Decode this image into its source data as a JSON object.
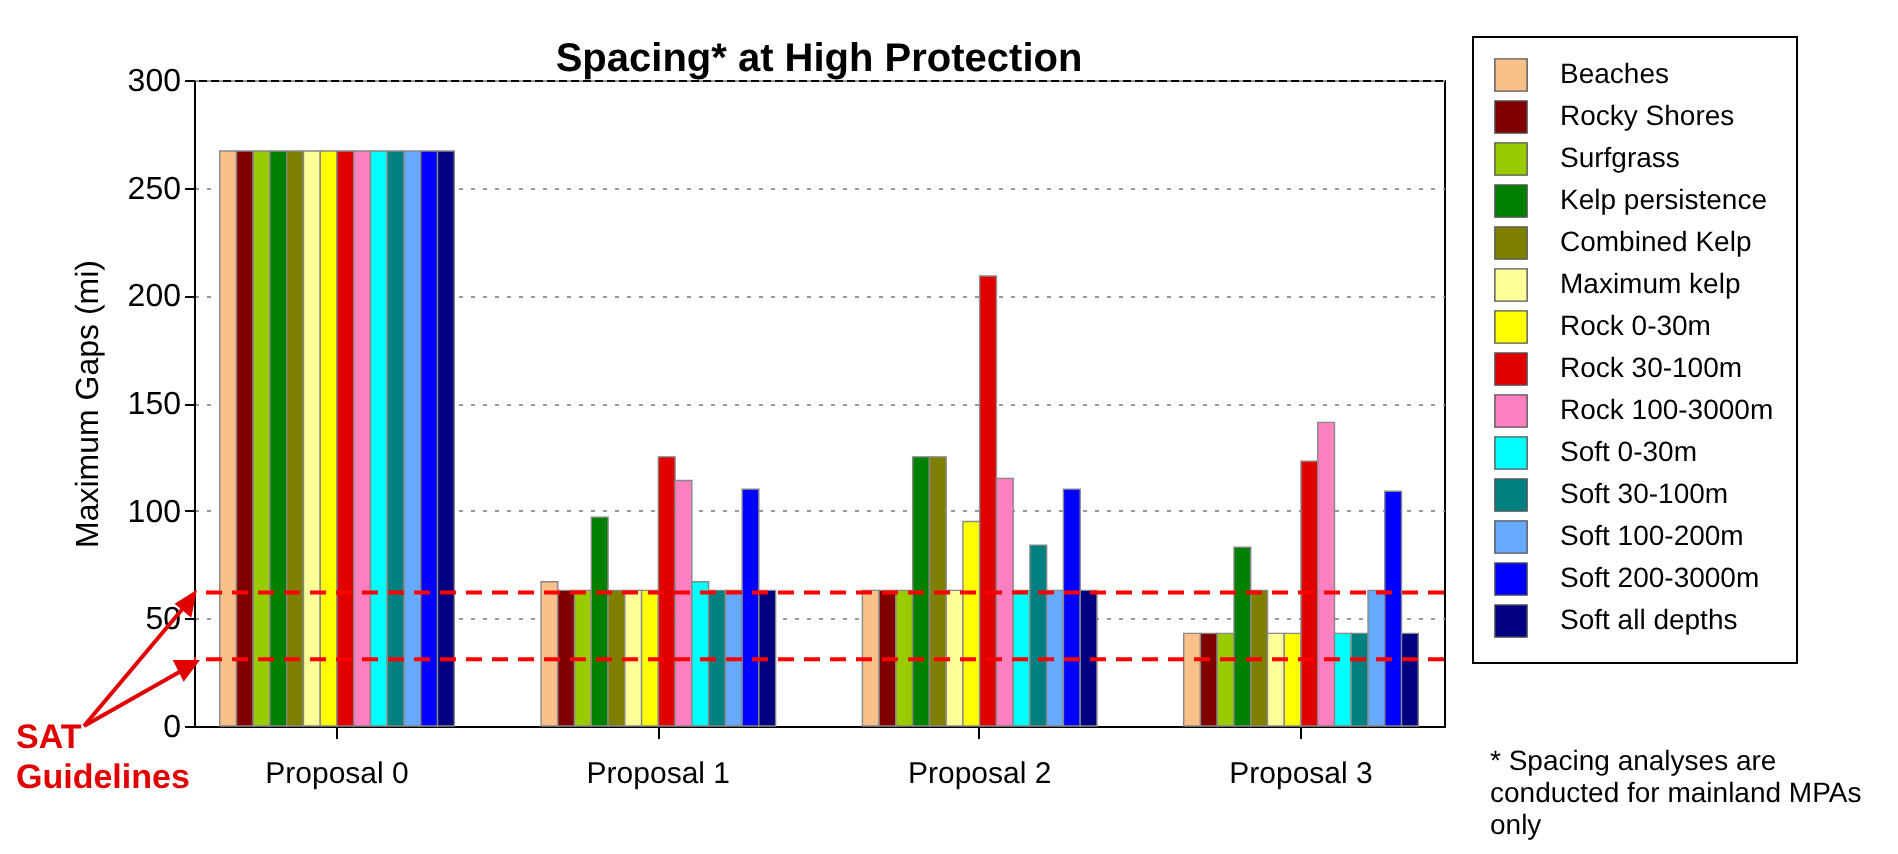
{
  "chart_data": {
    "type": "bar",
    "title": "Spacing* at High Protection",
    "ylabel": "Maximum Gaps (mi)",
    "categories": [
      "Proposal 0",
      "Proposal 1",
      "Proposal 2",
      "Proposal 3"
    ],
    "series": [
      {
        "name": "Beaches",
        "color": "#f9c08a",
        "values": [
          267,
          67,
          63,
          43
        ]
      },
      {
        "name": "Rocky Shores",
        "color": "#800000",
        "values": [
          267,
          63,
          63,
          43
        ]
      },
      {
        "name": "Surfgrass",
        "color": "#99cc00",
        "values": [
          267,
          63,
          63,
          43
        ]
      },
      {
        "name": "Kelp persistence",
        "color": "#008000",
        "values": [
          267,
          97,
          125,
          83
        ]
      },
      {
        "name": "Combined Kelp",
        "color": "#808000",
        "values": [
          267,
          63,
          125,
          63
        ]
      },
      {
        "name": "Maximum kelp",
        "color": "#ffff99",
        "values": [
          267,
          63,
          63,
          43
        ]
      },
      {
        "name": "Rock 0-30m",
        "color": "#ffff00",
        "values": [
          267,
          63,
          95,
          43
        ]
      },
      {
        "name": "Rock 30-100m",
        "color": "#e00000",
        "values": [
          267,
          125,
          209,
          123
        ]
      },
      {
        "name": "Rock 100-3000m",
        "color": "#ff80c0",
        "values": [
          267,
          114,
          115,
          141
        ]
      },
      {
        "name": "Soft 0-30m",
        "color": "#00ffff",
        "values": [
          267,
          67,
          63,
          43
        ]
      },
      {
        "name": "Soft 30-100m",
        "color": "#008080",
        "values": [
          267,
          63,
          84,
          43
        ]
      },
      {
        "name": "Soft 100-200m",
        "color": "#66aaff",
        "values": [
          267,
          63,
          63,
          63
        ]
      },
      {
        "name": "Soft 200-3000m",
        "color": "#0000ff",
        "values": [
          267,
          110,
          110,
          109
        ]
      },
      {
        "name": "Soft all depths",
        "color": "#000080",
        "values": [
          267,
          63,
          63,
          43
        ]
      }
    ],
    "ylim": [
      0,
      300
    ],
    "yticks": [
      0,
      50,
      100,
      150,
      200,
      250,
      300
    ],
    "grid": "y",
    "legend": "right",
    "ref_lines": [
      {
        "axis": "y",
        "value": 62,
        "color": "#ff0000",
        "line_style": "dashed"
      },
      {
        "axis": "y",
        "value": 31,
        "color": "#ff0000",
        "line_style": "dashed"
      }
    ],
    "annotations": [
      "SAT Guidelines",
      "* Spacing analyses are conducted for mainland MPAs only"
    ]
  }
}
